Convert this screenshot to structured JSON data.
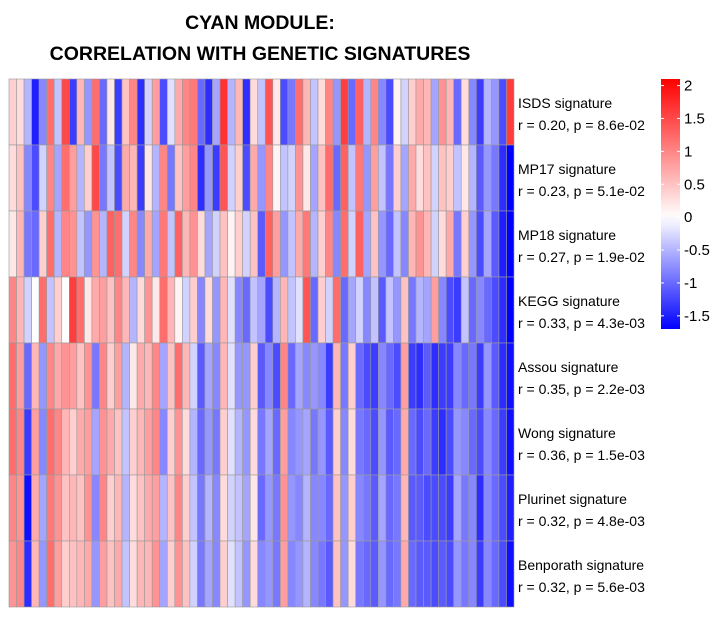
{
  "chart_data": {
    "type": "heatmap",
    "title_lines": [
      "CYAN MODULE:",
      "CORRELATION WITH GENETIC SIGNATURES"
    ],
    "rows": [
      {
        "name": "ISDS signature",
        "stat": "r = 0.20, p = 8.6e-02",
        "values": [
          0.4,
          0.3,
          -0.5,
          -1.5,
          -0.8,
          1.2,
          -0.4,
          1.5,
          -1.3,
          0.6,
          -0.7,
          1.2,
          -1.0,
          0.2,
          -1.3,
          0.5,
          1.0,
          -1.4,
          -0.3,
          0.8,
          -1.2,
          -0.2,
          0.7,
          1.0,
          1.1,
          -1.0,
          -1.4,
          -0.6,
          1.7,
          -0.5,
          0.6,
          -1.4,
          0.3,
          -0.4,
          1.4,
          0.2,
          -1.2,
          -0.9,
          1.2,
          0.6,
          -0.4,
          0.3,
          1.0,
          -0.7,
          1.6,
          -1.0,
          1.3,
          -0.5,
          1.0,
          -0.8,
          -1.2,
          0.1,
          -0.3,
          0.4,
          0.7,
          0.6,
          -0.6,
          0.9,
          0.6,
          -1.0,
          0.3,
          -0.8,
          -1.3,
          -0.5,
          -0.7,
          -1.2,
          1.6
        ]
      },
      {
        "name": "MP17 signature",
        "stat": "r = 0.23, p = 5.1e-02",
        "values": [
          0.3,
          0.5,
          -0.8,
          -1.2,
          -0.3,
          1.0,
          -0.6,
          1.2,
          0.8,
          -0.5,
          0.4,
          1.5,
          -0.9,
          -0.4,
          -1.2,
          0.7,
          0.6,
          -1.3,
          0.2,
          -0.5,
          1.0,
          -0.9,
          0.5,
          0.8,
          1.0,
          -1.4,
          -0.7,
          -1.3,
          1.4,
          -0.3,
          0.4,
          -1.2,
          0.7,
          -0.7,
          1.0,
          0.1,
          -0.4,
          -0.3,
          0.9,
          0.2,
          -0.6,
          0.5,
          1.2,
          -1.0,
          1.3,
          -0.4,
          1.1,
          -0.7,
          0.8,
          -0.4,
          -0.9,
          0.4,
          -0.6,
          0.7,
          0.3,
          0.5,
          -0.3,
          0.5,
          0.4,
          -0.4,
          0.2,
          -0.5,
          -1.1,
          -0.7,
          -0.9,
          -1.4,
          -1.7
        ]
      },
      {
        "name": "MP18 signature",
        "stat": "r = 0.27, p = 1.9e-02",
        "values": [
          0.2,
          0.6,
          -0.9,
          -1.0,
          0.4,
          1.2,
          -0.5,
          1.0,
          0.9,
          -0.4,
          -0.7,
          0.9,
          -0.5,
          1.3,
          1.2,
          -0.3,
          1.0,
          -0.8,
          0.7,
          -0.6,
          1.1,
          -0.4,
          1.3,
          0.6,
          0.9,
          0.3,
          -0.6,
          -0.3,
          0.5,
          0.1,
          0.4,
          -0.3,
          0.5,
          -1.1,
          1.3,
          0.8,
          -0.7,
          -0.4,
          0.7,
          1.1,
          -0.5,
          0.4,
          1.0,
          -0.8,
          1.2,
          -0.3,
          1.3,
          -0.6,
          0.5,
          -0.7,
          -1.0,
          -0.4,
          -0.8,
          0.6,
          0.9,
          0.6,
          -0.3,
          0.3,
          0.7,
          -0.9,
          0.4,
          -0.7,
          -1.2,
          -0.6,
          -1.1,
          -1.5,
          -1.7
        ]
      },
      {
        "name": "KEGG signature",
        "stat": "r = 0.33, p = 4.3e-03",
        "values": [
          1.0,
          0.6,
          -0.3,
          0.0,
          1.2,
          -0.4,
          0.4,
          0.0,
          1.6,
          1.2,
          0.2,
          0.7,
          0.8,
          0.5,
          1.0,
          0.6,
          -0.5,
          0.3,
          0.9,
          0.2,
          1.2,
          0.6,
          0.1,
          -0.3,
          0.4,
          -0.8,
          0.3,
          -0.7,
          0.6,
          -0.2,
          -0.8,
          -1.0,
          -0.4,
          -0.6,
          -1.2,
          -0.5,
          0.6,
          -0.4,
          -0.2,
          1.4,
          -1.0,
          0.4,
          -0.3,
          1.2,
          -1.0,
          -0.6,
          -0.3,
          -0.8,
          -0.4,
          -1.1,
          -0.4,
          -0.7,
          0.5,
          -0.9,
          -0.5,
          -0.6,
          0.8,
          -0.8,
          -1.2,
          -1.3,
          -0.4,
          -1.0,
          -0.8,
          -1.0,
          -1.2,
          -1.4,
          -1.7
        ]
      },
      {
        "name": "Assou signature",
        "stat": "r = 0.35, p = 2.2e-03",
        "values": [
          1.2,
          0.8,
          -1.0,
          0.6,
          -0.7,
          1.0,
          0.7,
          0.9,
          0.8,
          0.5,
          0.9,
          -0.9,
          1.0,
          0.4,
          0.8,
          -0.5,
          0.2,
          0.7,
          0.6,
          1.0,
          -0.6,
          0.5,
          1.2,
          0.6,
          -0.3,
          -1.1,
          -0.6,
          -0.8,
          0.6,
          -0.2,
          -0.7,
          -0.7,
          0.4,
          -1.1,
          -0.8,
          -1.2,
          1.0,
          -1.0,
          -0.6,
          -0.8,
          -0.7,
          -0.8,
          -1.3,
          0.6,
          -0.9,
          0.4,
          -1.0,
          -1.2,
          -1.3,
          -0.8,
          -1.0,
          -1.2,
          0.8,
          -1.3,
          -1.4,
          -1.1,
          -1.4,
          -1.3,
          -1.3,
          -0.8,
          -1.0,
          -0.9,
          -1.3,
          -0.7,
          -1.1,
          -1.4,
          -1.6
        ]
      },
      {
        "name": "Wong signature",
        "stat": "r = 0.36, p = 1.5e-03",
        "values": [
          1.2,
          1.0,
          -1.3,
          0.8,
          -0.8,
          1.2,
          1.0,
          0.6,
          0.4,
          0.7,
          0.8,
          -0.6,
          0.9,
          0.7,
          0.5,
          -0.4,
          0.4,
          0.6,
          0.8,
          1.0,
          -0.8,
          0.4,
          0.9,
          0.3,
          -0.5,
          -1.0,
          -0.7,
          -0.9,
          0.4,
          -0.2,
          -0.5,
          -0.7,
          0.3,
          -0.9,
          -0.6,
          -1.0,
          0.8,
          -0.8,
          -0.7,
          -0.6,
          -0.9,
          -0.7,
          -1.1,
          0.4,
          -0.8,
          0.3,
          -0.9,
          -1.0,
          -1.2,
          -0.7,
          -1.1,
          -1.0,
          0.7,
          -1.0,
          -1.2,
          -1.0,
          -1.3,
          -1.4,
          -1.2,
          -0.7,
          -0.8,
          -1.0,
          -1.2,
          -0.8,
          -1.0,
          -1.3,
          -1.6
        ]
      },
      {
        "name": "Plurinet signature",
        "stat": "r = 0.32, p = 4.8e-03",
        "values": [
          1.0,
          0.9,
          -1.6,
          0.7,
          -0.6,
          1.1,
          0.9,
          0.5,
          0.6,
          0.5,
          0.9,
          -0.8,
          1.0,
          0.4,
          0.6,
          -0.5,
          0.3,
          0.5,
          0.7,
          0.8,
          -0.5,
          0.5,
          1.0,
          0.4,
          -0.4,
          -0.9,
          -0.5,
          -0.8,
          0.3,
          -0.3,
          -0.4,
          -0.6,
          0.2,
          -1.0,
          -0.7,
          -0.9,
          0.9,
          -0.7,
          -0.8,
          -0.5,
          -0.8,
          -0.8,
          -1.0,
          0.5,
          -0.7,
          0.4,
          -0.8,
          -0.9,
          -1.1,
          -0.6,
          -1.0,
          -0.9,
          0.6,
          -1.1,
          -1.1,
          -1.2,
          -1.2,
          -1.2,
          -1.3,
          -0.6,
          -0.9,
          -0.8,
          -1.4,
          -0.8,
          -1.0,
          -1.2,
          -1.5
        ]
      },
      {
        "name": "Benporath signature",
        "stat": "r = 0.32, p = 5.6e-03",
        "values": [
          0.9,
          1.0,
          -1.4,
          0.6,
          -0.7,
          1.2,
          0.8,
          0.4,
          0.5,
          0.6,
          0.7,
          -0.7,
          0.8,
          0.5,
          0.7,
          -0.4,
          0.3,
          0.6,
          0.6,
          0.9,
          -0.6,
          0.4,
          0.9,
          0.5,
          -0.3,
          -0.9,
          -0.6,
          -0.8,
          0.4,
          -0.2,
          -0.4,
          -0.7,
          0.3,
          -0.8,
          -0.7,
          -0.9,
          0.8,
          -0.8,
          -0.7,
          -0.5,
          -0.8,
          -0.9,
          -1.1,
          0.5,
          -0.7,
          0.3,
          -0.9,
          -1.0,
          -1.1,
          -0.7,
          -1.0,
          -0.9,
          0.7,
          -1.0,
          -1.1,
          -1.1,
          -1.2,
          -1.1,
          -1.2,
          -0.7,
          -0.9,
          -0.8,
          -1.3,
          -0.8,
          -1.0,
          -1.2,
          -1.6
        ]
      }
    ],
    "scale": {
      "min": -1.7,
      "max": 2.1,
      "mid": 0,
      "ticks": [
        2,
        1.5,
        1,
        0.5,
        0,
        -0.5,
        -1,
        -1.5
      ],
      "low_color": "#0000ff",
      "mid_color": "#ffffff",
      "high_color": "#ff0000"
    }
  }
}
